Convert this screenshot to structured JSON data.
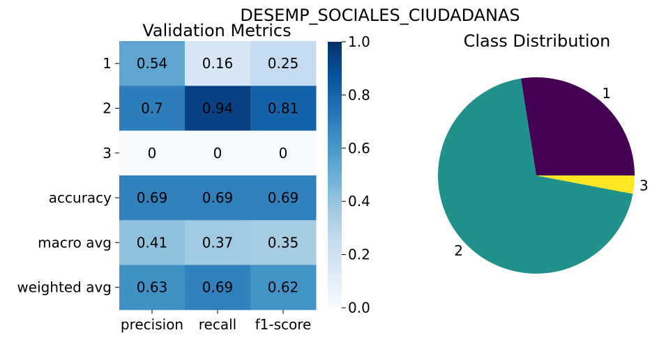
{
  "figure": {
    "suptitle": "DESEMP_SOCIALES_CIUDADANAS"
  },
  "chart_data": [
    {
      "type": "heatmap",
      "title": "Validation Metrics",
      "rows": [
        "1",
        "2",
        "3",
        "accuracy",
        "macro avg",
        "weighted avg"
      ],
      "columns": [
        "precision",
        "recall",
        "f1-score"
      ],
      "values": [
        [
          0.54,
          0.16,
          0.25
        ],
        [
          0.7,
          0.94,
          0.81
        ],
        [
          0,
          0,
          0
        ],
        [
          0.69,
          0.69,
          0.69
        ],
        [
          0.41,
          0.37,
          0.35
        ],
        [
          0.63,
          0.69,
          0.62
        ]
      ],
      "cell_labels": [
        [
          "0.54",
          "0.16",
          "0.25"
        ],
        [
          "0.7",
          "0.94",
          "0.81"
        ],
        [
          "0",
          "0",
          "0"
        ],
        [
          "0.69",
          "0.69",
          "0.69"
        ],
        [
          "0.41",
          "0.37",
          "0.35"
        ],
        [
          "0.63",
          "0.69",
          "0.62"
        ]
      ],
      "colormap": "Blues",
      "colorbar": {
        "range": [
          0,
          1
        ],
        "ticks": [
          "0.0",
          "0.2",
          "0.4",
          "0.6",
          "0.8",
          "1.0"
        ]
      }
    },
    {
      "type": "pie",
      "title": "Class Distribution",
      "labels": [
        "1",
        "2",
        "3"
      ],
      "values": [
        27.5,
        69.5,
        3.0
      ],
      "colors": [
        "#440154",
        "#21918c",
        "#fde725"
      ],
      "start_angle_deg": 0
    }
  ]
}
